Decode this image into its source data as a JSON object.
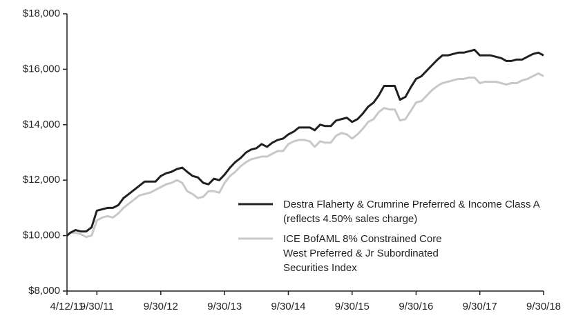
{
  "chart_data": {
    "type": "line",
    "x": [
      "2011-04-12",
      "2011-04-30",
      "2011-05-31",
      "2011-06-30",
      "2011-07-31",
      "2011-08-31",
      "2011-09-30",
      "2011-10-31",
      "2011-11-30",
      "2011-12-31",
      "2012-01-31",
      "2012-02-29",
      "2012-03-31",
      "2012-04-30",
      "2012-05-31",
      "2012-06-30",
      "2012-07-31",
      "2012-08-31",
      "2012-09-30",
      "2012-10-31",
      "2012-11-30",
      "2012-12-31",
      "2013-01-31",
      "2013-02-28",
      "2013-03-31",
      "2013-04-30",
      "2013-05-31",
      "2013-06-30",
      "2013-07-31",
      "2013-08-31",
      "2013-09-30",
      "2013-10-31",
      "2013-11-30",
      "2013-12-31",
      "2014-01-31",
      "2014-02-28",
      "2014-03-31",
      "2014-04-30",
      "2014-05-31",
      "2014-06-30",
      "2014-07-31",
      "2014-08-31",
      "2014-09-30",
      "2014-10-31",
      "2014-11-30",
      "2014-12-31",
      "2015-01-31",
      "2015-02-28",
      "2015-03-31",
      "2015-04-30",
      "2015-05-31",
      "2015-06-30",
      "2015-07-31",
      "2015-08-31",
      "2015-09-30",
      "2015-10-31",
      "2015-11-30",
      "2015-12-31",
      "2016-01-31",
      "2016-02-29",
      "2016-03-31",
      "2016-04-30",
      "2016-05-31",
      "2016-06-30",
      "2016-07-31",
      "2016-08-31",
      "2016-09-30",
      "2016-10-31",
      "2016-11-30",
      "2016-12-31",
      "2017-01-31",
      "2017-02-28",
      "2017-03-31",
      "2017-04-30",
      "2017-05-31",
      "2017-06-30",
      "2017-07-31",
      "2017-08-31",
      "2017-09-30",
      "2017-10-31",
      "2017-11-30",
      "2017-12-31",
      "2018-01-31",
      "2018-02-28",
      "2018-03-31",
      "2018-04-30",
      "2018-05-31",
      "2018-06-30",
      "2018-07-31",
      "2018-08-31",
      "2018-09-30"
    ],
    "series": [
      {
        "name": "Destra Flaherty & Crumrine Preferred & Income Class A (reflects 4.50% sales charge)",
        "color": "#231f20",
        "values": [
          10000,
          10100,
          10200,
          10150,
          10150,
          10300,
          10900,
          10950,
          11000,
          11000,
          11100,
          11350,
          11500,
          11650,
          11800,
          11950,
          11950,
          11950,
          12150,
          12250,
          12300,
          12400,
          12450,
          12300,
          12150,
          12100,
          11900,
          11850,
          12050,
          12000,
          12200,
          12450,
          12650,
          12800,
          13000,
          13100,
          13150,
          13300,
          13200,
          13350,
          13450,
          13500,
          13650,
          13750,
          13900,
          13900,
          13900,
          13800,
          14000,
          13950,
          13950,
          14150,
          14200,
          14250,
          14100,
          14200,
          14400,
          14650,
          14800,
          15050,
          15400,
          15400,
          15400,
          14900,
          15000,
          15350,
          15650,
          15750,
          15950,
          16150,
          16350,
          16500,
          16500,
          16550,
          16600,
          16600,
          16650,
          16700,
          16500,
          16500,
          16500,
          16450,
          16400,
          16300,
          16300,
          16350,
          16350,
          16450,
          16550,
          16600,
          16500
        ]
      },
      {
        "name": "ICE BofAML 8% Constrained Core West Preferred & Jr Subordinated Securities Index",
        "color": "#c8c8c8",
        "values": [
          10000,
          10100,
          10100,
          10050,
          9950,
          10000,
          10550,
          10650,
          10700,
          10650,
          10800,
          11000,
          11150,
          11300,
          11450,
          11500,
          11550,
          11650,
          11750,
          11850,
          11900,
          12000,
          11900,
          11600,
          11500,
          11350,
          11400,
          11600,
          11600,
          11550,
          11900,
          12150,
          12300,
          12500,
          12650,
          12750,
          12800,
          12850,
          12850,
          12950,
          13050,
          13050,
          13300,
          13400,
          13450,
          13450,
          13400,
          13200,
          13400,
          13350,
          13350,
          13600,
          13700,
          13650,
          13500,
          13650,
          13850,
          14100,
          14200,
          14450,
          14600,
          14550,
          14550,
          14150,
          14200,
          14500,
          14800,
          14850,
          15050,
          15250,
          15400,
          15500,
          15550,
          15600,
          15650,
          15650,
          15700,
          15700,
          15500,
          15550,
          15550,
          15550,
          15500,
          15450,
          15500,
          15500,
          15600,
          15650,
          15750,
          15850,
          15750
        ]
      }
    ],
    "xlim": [
      "2011-04-12",
      "2018-09-30"
    ],
    "xticks": [
      {
        "value": "2011-04-12",
        "label": "4/12/11"
      },
      {
        "value": "2011-09-30",
        "label": "9/30/11"
      },
      {
        "value": "2012-09-30",
        "label": "9/30/12"
      },
      {
        "value": "2013-09-30",
        "label": "9/30/13"
      },
      {
        "value": "2014-09-30",
        "label": "9/30/14"
      },
      {
        "value": "2015-09-30",
        "label": "9/30/15"
      },
      {
        "value": "2016-09-30",
        "label": "9/30/16"
      },
      {
        "value": "2017-09-30",
        "label": "9/30/17"
      },
      {
        "value": "2018-09-30",
        "label": "9/30/18"
      }
    ],
    "ylim": [
      8000,
      18000
    ],
    "yticks": [
      {
        "value": 8000,
        "label": "$8,000"
      },
      {
        "value": 10000,
        "label": "$10,000"
      },
      {
        "value": 12000,
        "label": "$12,000"
      },
      {
        "value": 14000,
        "label": "$14,000"
      },
      {
        "value": 16000,
        "label": "$16,000"
      },
      {
        "value": 18000,
        "label": "$18,000"
      }
    ],
    "grid": false
  }
}
